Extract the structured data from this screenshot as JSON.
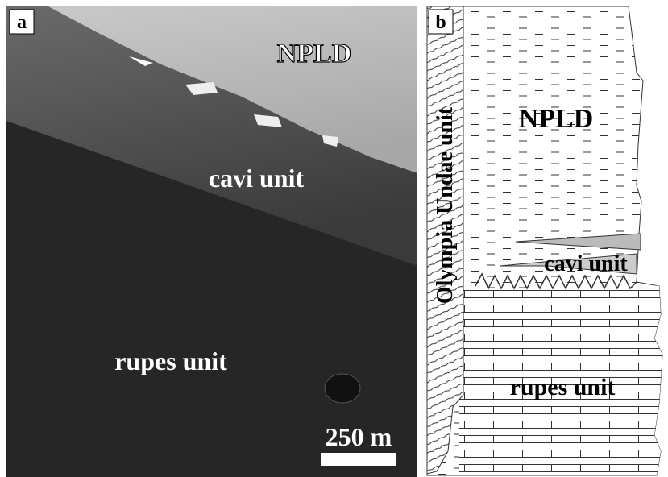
{
  "panel_a": {
    "label": "a",
    "units": [
      "NPLD",
      "cavi unit",
      "rupes unit"
    ],
    "scale_bar": "250 m"
  },
  "panel_b": {
    "label": "b",
    "side_unit": "Olympia Undae unit",
    "units": [
      "NPLD",
      "cavi unit",
      "rupes unit"
    ]
  }
}
